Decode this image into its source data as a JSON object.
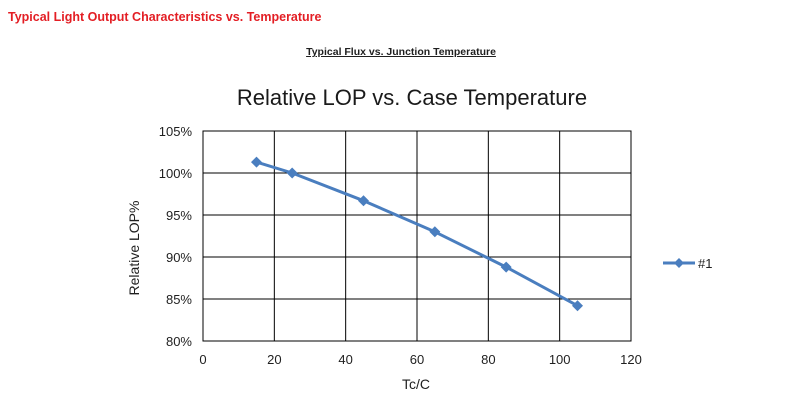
{
  "page": {
    "heading": "Typical Light Output Characteristics vs. Temperature",
    "subheading": "Typical Flux vs. Junction Temperature"
  },
  "chart_data": {
    "type": "line",
    "title": "Relative LOP vs. Case Temperature",
    "xlabel": "Tc/C",
    "ylabel": "Relative LOP%",
    "xlim": [
      0,
      120
    ],
    "ylim": [
      80,
      105
    ],
    "x_ticks": [
      0,
      20,
      40,
      60,
      80,
      100,
      120
    ],
    "y_ticks": [
      80,
      85,
      90,
      95,
      100,
      105
    ],
    "y_tick_labels": [
      "80%",
      "85%",
      "90%",
      "95%",
      "100%",
      "105%"
    ],
    "grid": true,
    "legend_position": "right",
    "series": [
      {
        "name": "#1",
        "color": "#4a7ebf",
        "marker": "diamond",
        "x": [
          15,
          25,
          45,
          65,
          85,
          105
        ],
        "y": [
          101.3,
          100.0,
          96.7,
          93.0,
          88.8,
          84.2
        ]
      }
    ]
  }
}
